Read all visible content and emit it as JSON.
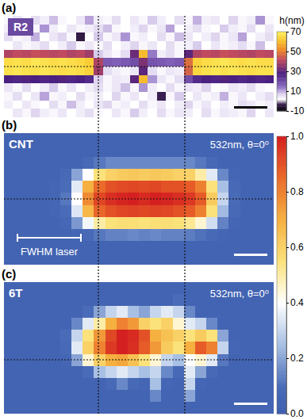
{
  "chart_data": [
    {
      "type": "heatmap",
      "panel_label": "(a)",
      "title": "R2",
      "colorbar_label": "h(nm)",
      "tick_labels": false,
      "zlim": [
        -10,
        70
      ],
      "zticks": [
        70,
        50,
        30,
        10,
        -10
      ],
      "z": [
        [
          3,
          5,
          2,
          6,
          4,
          9,
          3,
          2,
          5,
          11,
          4,
          3,
          6,
          2,
          5,
          3,
          8,
          4,
          2,
          6,
          3,
          10,
          4,
          5,
          2,
          7,
          3,
          4,
          12,
          3
        ],
        [
          4,
          2,
          7,
          3,
          12,
          4,
          2,
          5,
          3,
          4,
          6,
          9,
          3,
          2,
          4,
          7,
          3,
          5,
          11,
          2,
          4,
          6,
          3,
          2,
          8,
          4,
          3,
          6,
          2,
          5
        ],
        [
          6,
          3,
          4,
          10,
          2,
          5,
          7,
          3,
          -4,
          2,
          8,
          3,
          5,
          12,
          3,
          4,
          2,
          6,
          3,
          9,
          5,
          2,
          4,
          7,
          3,
          5,
          11,
          2,
          4,
          6
        ],
        [
          2,
          5,
          3,
          4,
          6,
          2,
          4,
          8,
          3,
          5,
          3,
          6,
          2,
          4,
          7,
          3,
          5,
          2,
          6,
          3,
          4,
          8,
          2,
          5,
          3,
          4,
          6,
          3,
          9,
          2
        ],
        [
          40,
          42,
          41,
          43,
          42,
          41,
          42,
          40,
          41,
          38,
          8,
          5,
          3,
          6,
          32,
          60,
          14,
          4,
          6,
          3,
          30,
          40,
          42,
          41,
          43,
          42,
          41,
          40,
          42,
          41
        ],
        [
          66,
          67,
          66,
          68,
          67,
          66,
          67,
          66,
          65,
          63,
          40,
          18,
          17,
          18,
          20,
          34,
          19,
          18,
          17,
          18,
          48,
          64,
          66,
          67,
          68,
          67,
          66,
          67,
          66,
          66
        ],
        [
          67,
          68,
          67,
          67,
          68,
          67,
          66,
          67,
          66,
          64,
          38,
          6,
          4,
          3,
          5,
          30,
          6,
          3,
          5,
          4,
          46,
          65,
          67,
          68,
          67,
          68,
          67,
          66,
          67,
          67
        ],
        [
          28,
          27,
          29,
          28,
          27,
          28,
          29,
          27,
          28,
          26,
          7,
          3,
          5,
          4,
          30,
          60,
          12,
          5,
          3,
          6,
          20,
          26,
          28,
          27,
          29,
          28,
          27,
          28,
          27,
          28
        ],
        [
          5,
          3,
          6,
          2,
          4,
          8,
          3,
          5,
          2,
          4,
          6,
          3,
          5,
          9,
          3,
          12,
          4,
          2,
          6,
          3,
          5,
          4,
          7,
          2,
          3,
          5,
          4,
          6,
          3,
          2
        ],
        [
          3,
          6,
          2,
          5,
          11,
          3,
          4,
          2,
          6,
          3,
          4,
          2,
          7,
          3,
          5,
          2,
          4,
          -3,
          3,
          8,
          2,
          5,
          3,
          4,
          10,
          3,
          5,
          2,
          4,
          6
        ],
        [
          4,
          2,
          5,
          3,
          2,
          6,
          3,
          9,
          4,
          2,
          5,
          7,
          3,
          4,
          2,
          6,
          3,
          5,
          2,
          4,
          7,
          3,
          5,
          2,
          4,
          3,
          6,
          5,
          3,
          4
        ],
        [
          2,
          5,
          3,
          7,
          4,
          3,
          5,
          2,
          4,
          6,
          3,
          2,
          5,
          3,
          8,
          4,
          2,
          6,
          3,
          5,
          4,
          2,
          6,
          3,
          5,
          4,
          3,
          7,
          2,
          5
        ]
      ]
    },
    {
      "type": "heatmap",
      "panel_label": "(b)",
      "title": "CNT",
      "subtitle": "532nm, θ=0⁰",
      "annotation": "FWHM laser",
      "tick_labels": false,
      "zlim": [
        0,
        1
      ],
      "zticks": [
        {
          "value": 1,
          "label": "1.0"
        },
        {
          "value": 0.8,
          "label": "0.8"
        },
        {
          "value": 0.6,
          "label": "0.6"
        },
        {
          "value": 0.4,
          "label": "0.4"
        },
        {
          "value": 0.2,
          "label": "0.2"
        },
        {
          "value": 0,
          "label": "0.0"
        }
      ],
      "z": [
        [
          0.05,
          0.05,
          0.05,
          0.05,
          0.05,
          0.05,
          0.05,
          0.05,
          0.05,
          0.05,
          0.05,
          0.05,
          0.05,
          0.05,
          0.05,
          0.05,
          0.05,
          0.05,
          0.05,
          0.05,
          0.05,
          0.05,
          0.05,
          0.05
        ],
        [
          0.05,
          0.05,
          0.05,
          0.05,
          0.05,
          0.05,
          0.05,
          0.05,
          0.05,
          0.05,
          0.05,
          0.05,
          0.05,
          0.05,
          0.05,
          0.05,
          0.05,
          0.05,
          0.05,
          0.05,
          0.05,
          0.05,
          0.05,
          0.05
        ],
        [
          0.05,
          0.05,
          0.05,
          0.05,
          0.05,
          0.05,
          0.05,
          0.08,
          0.12,
          0.15,
          0.15,
          0.15,
          0.15,
          0.15,
          0.15,
          0.15,
          0.15,
          0.12,
          0.08,
          0.05,
          0.05,
          0.05,
          0.05,
          0.05
        ],
        [
          0.05,
          0.05,
          0.05,
          0.05,
          0.05,
          0.08,
          0.2,
          0.4,
          0.55,
          0.6,
          0.62,
          0.63,
          0.62,
          0.63,
          0.62,
          0.6,
          0.6,
          0.5,
          0.35,
          0.15,
          0.06,
          0.05,
          0.05,
          0.05
        ],
        [
          0.05,
          0.05,
          0.05,
          0.05,
          0.06,
          0.1,
          0.35,
          0.7,
          0.85,
          0.9,
          0.91,
          0.92,
          0.91,
          0.92,
          0.9,
          0.9,
          0.88,
          0.8,
          0.55,
          0.25,
          0.08,
          0.05,
          0.05,
          0.05
        ],
        [
          0.05,
          0.05,
          0.05,
          0.05,
          0.06,
          0.12,
          0.4,
          0.78,
          0.92,
          0.97,
          0.99,
          1.0,
          0.98,
          1.0,
          0.99,
          0.97,
          0.95,
          0.88,
          0.62,
          0.3,
          0.09,
          0.05,
          0.05,
          0.05
        ],
        [
          0.05,
          0.05,
          0.05,
          0.05,
          0.06,
          0.1,
          0.34,
          0.68,
          0.86,
          0.9,
          0.92,
          0.93,
          0.92,
          0.93,
          0.92,
          0.9,
          0.88,
          0.8,
          0.55,
          0.24,
          0.08,
          0.05,
          0.05,
          0.05
        ],
        [
          0.05,
          0.05,
          0.05,
          0.05,
          0.05,
          0.07,
          0.18,
          0.38,
          0.5,
          0.55,
          0.56,
          0.56,
          0.55,
          0.56,
          0.56,
          0.55,
          0.52,
          0.45,
          0.32,
          0.14,
          0.06,
          0.05,
          0.05,
          0.05
        ],
        [
          0.05,
          0.05,
          0.05,
          0.05,
          0.05,
          0.05,
          0.06,
          0.08,
          0.12,
          0.14,
          0.14,
          0.15,
          0.14,
          0.15,
          0.14,
          0.14,
          0.13,
          0.11,
          0.08,
          0.06,
          0.05,
          0.05,
          0.05,
          0.05
        ],
        [
          0.05,
          0.05,
          0.05,
          0.05,
          0.05,
          0.05,
          0.05,
          0.05,
          0.05,
          0.05,
          0.05,
          0.05,
          0.05,
          0.05,
          0.05,
          0.05,
          0.05,
          0.05,
          0.05,
          0.05,
          0.05,
          0.05,
          0.05,
          0.05
        ],
        [
          0.05,
          0.05,
          0.05,
          0.05,
          0.05,
          0.05,
          0.05,
          0.05,
          0.05,
          0.05,
          0.05,
          0.05,
          0.05,
          0.05,
          0.05,
          0.05,
          0.05,
          0.05,
          0.05,
          0.05,
          0.05,
          0.05,
          0.05,
          0.05
        ]
      ]
    },
    {
      "type": "heatmap",
      "panel_label": "(c)",
      "title": "6T",
      "subtitle": "532nm, θ=0⁰",
      "tick_labels": false,
      "zlim": [
        0,
        1
      ],
      "z": [
        [
          0.05,
          0.05,
          0.05,
          0.05,
          0.05,
          0.05,
          0.05,
          0.05,
          0.05,
          0.05,
          0.05,
          0.05,
          0.05,
          0.05,
          0.05,
          0.05,
          0.05,
          0.05,
          0.05,
          0.05,
          0.05,
          0.05,
          0.05,
          0.05
        ],
        [
          0.05,
          0.05,
          0.05,
          0.05,
          0.05,
          0.05,
          0.05,
          0.05,
          0.05,
          0.05,
          0.05,
          0.05,
          0.05,
          0.05,
          0.05,
          0.1,
          0.05,
          0.05,
          0.05,
          0.05,
          0.05,
          0.05,
          0.05,
          0.05
        ],
        [
          0.05,
          0.05,
          0.05,
          0.05,
          0.05,
          0.05,
          0.05,
          0.1,
          0.2,
          0.3,
          0.35,
          0.25,
          0.2,
          0.3,
          0.35,
          0.3,
          0.15,
          0.05,
          0.05,
          0.05,
          0.05,
          0.05,
          0.05,
          0.05
        ],
        [
          0.05,
          0.05,
          0.05,
          0.05,
          0.05,
          0.05,
          0.15,
          0.35,
          0.5,
          0.7,
          0.8,
          0.75,
          0.6,
          0.55,
          0.6,
          0.45,
          0.35,
          0.3,
          0.15,
          0.05,
          0.05,
          0.05,
          0.05,
          0.05
        ],
        [
          0.05,
          0.05,
          0.05,
          0.05,
          0.05,
          0.1,
          0.3,
          0.55,
          0.75,
          0.92,
          1.0,
          0.98,
          0.9,
          0.7,
          0.65,
          0.6,
          0.55,
          0.62,
          0.55,
          0.2,
          0.05,
          0.05,
          0.05,
          0.05
        ],
        [
          0.05,
          0.05,
          0.05,
          0.05,
          0.05,
          0.08,
          0.35,
          0.6,
          0.8,
          0.95,
          1.0,
          0.97,
          0.88,
          0.75,
          0.62,
          0.55,
          0.7,
          0.88,
          0.8,
          0.3,
          0.06,
          0.05,
          0.05,
          0.05
        ],
        [
          0.05,
          0.05,
          0.05,
          0.05,
          0.05,
          0.06,
          0.2,
          0.45,
          0.6,
          0.7,
          0.72,
          0.65,
          0.55,
          0.45,
          0.3,
          0.25,
          0.4,
          0.45,
          0.35,
          0.12,
          0.05,
          0.05,
          0.05,
          0.05
        ],
        [
          0.05,
          0.05,
          0.05,
          0.05,
          0.05,
          0.05,
          0.05,
          0.1,
          0.25,
          0.3,
          0.35,
          0.3,
          0.25,
          0.3,
          0.15,
          0.08,
          0.35,
          0.2,
          0.08,
          0.05,
          0.05,
          0.05,
          0.05,
          0.05
        ],
        [
          0.05,
          0.05,
          0.05,
          0.05,
          0.05,
          0.05,
          0.05,
          0.05,
          0.05,
          0.08,
          0.15,
          0.08,
          0.06,
          0.25,
          0.06,
          0.05,
          0.3,
          0.06,
          0.05,
          0.05,
          0.05,
          0.05,
          0.05,
          0.05
        ],
        [
          0.05,
          0.05,
          0.05,
          0.05,
          0.05,
          0.05,
          0.05,
          0.05,
          0.05,
          0.05,
          0.05,
          0.05,
          0.05,
          0.15,
          0.05,
          0.05,
          0.2,
          0.05,
          0.05,
          0.05,
          0.05,
          0.05,
          0.05,
          0.05
        ],
        [
          0.05,
          0.05,
          0.05,
          0.05,
          0.05,
          0.05,
          0.05,
          0.05,
          0.05,
          0.05,
          0.05,
          0.05,
          0.05,
          0.05,
          0.05,
          0.05,
          0.05,
          0.05,
          0.05,
          0.05,
          0.05,
          0.05,
          0.05,
          0.05
        ]
      ]
    }
  ]
}
